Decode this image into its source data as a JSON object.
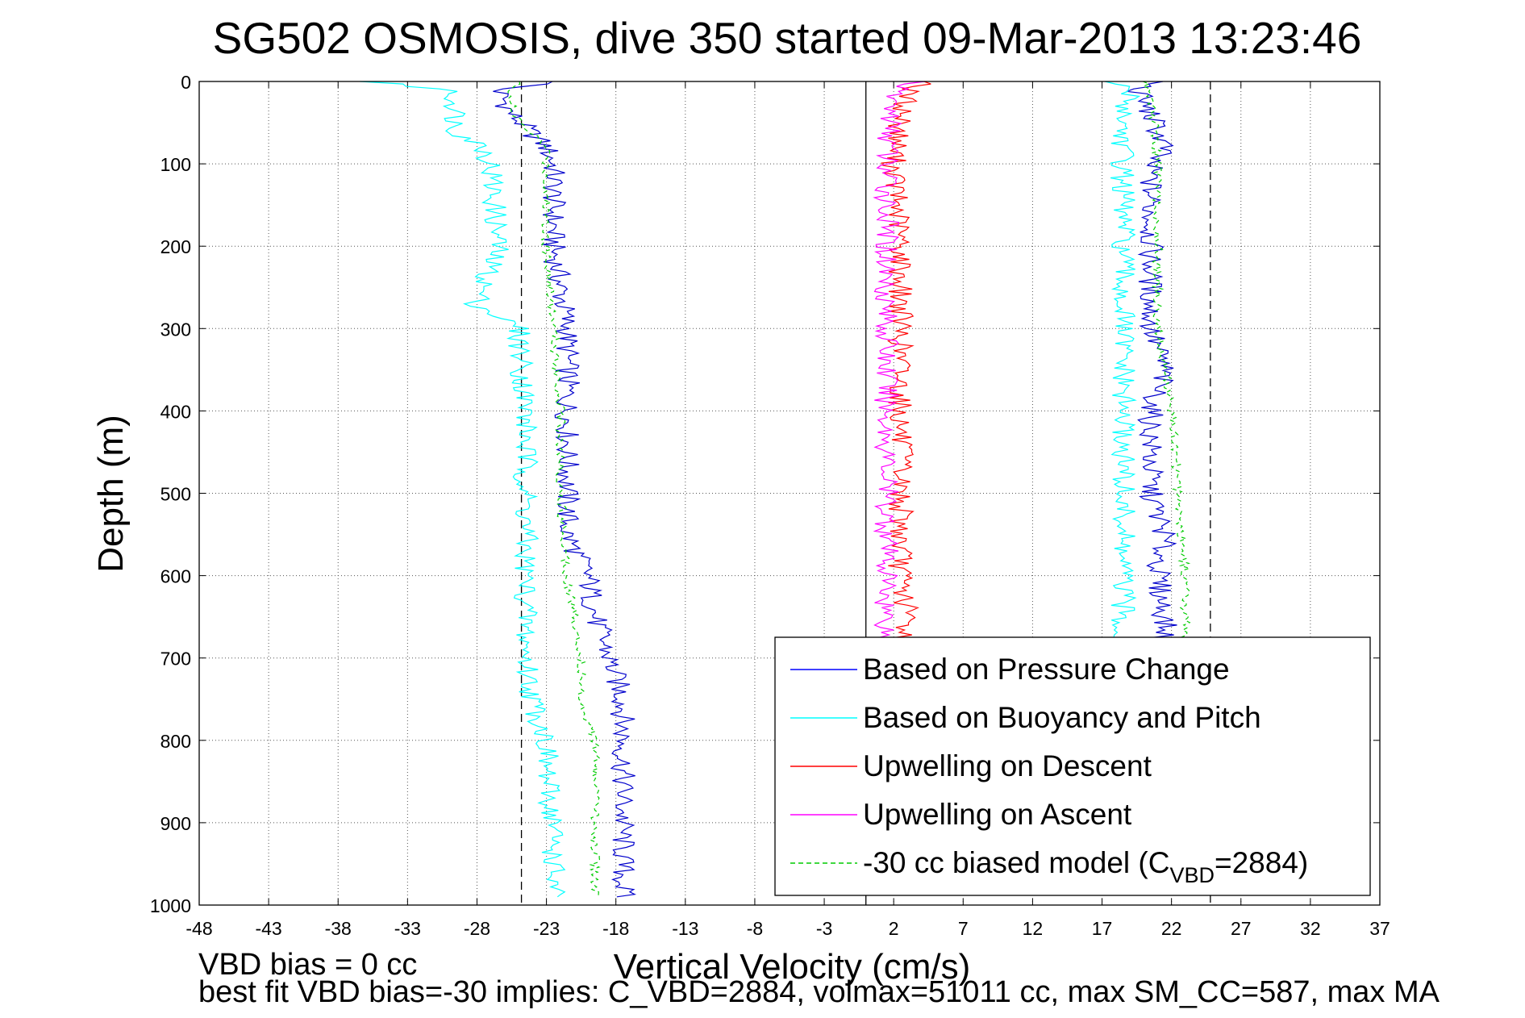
{
  "chart_data": {
    "type": "line",
    "title": "SG502 OSMOSIS, dive 350 started 09-Mar-2013 13:23:46",
    "xlabel": "Vertical Velocity (cm/s)",
    "ylabel": "Depth (m)",
    "xlim": [
      -48,
      37
    ],
    "ylim": [
      0,
      1000
    ],
    "y_reversed": true,
    "grid": true,
    "xticks": [
      -48,
      -43,
      -38,
      -33,
      -28,
      -23,
      -18,
      -13,
      -8,
      -3,
      2,
      7,
      12,
      17,
      22,
      27,
      32,
      37
    ],
    "yticks": [
      0,
      100,
      200,
      300,
      400,
      500,
      600,
      700,
      800,
      900,
      1000
    ],
    "reference_lines": [
      {
        "x": 0,
        "style": "solid"
      },
      {
        "x": -24.8,
        "style": "dashed"
      },
      {
        "x": 24.8,
        "style": "dashed"
      }
    ],
    "legend": {
      "location": "bottom-right",
      "entries": [
        {
          "label": "Based on Pressure Change",
          "color": "#0000ff",
          "style": "solid"
        },
        {
          "label": "Based on Buoyancy and Pitch",
          "color": "#00ffff",
          "style": "solid"
        },
        {
          "label": "Upwelling on Descent",
          "color": "#ff0000",
          "style": "solid"
        },
        {
          "label": "Upwelling on Ascent",
          "color": "#ff00ff",
          "style": "solid"
        },
        {
          "label": "-30 cc biased model (C",
          "sub": "VBD",
          "suffix": "=2884)",
          "color": "#00cc00",
          "style": "dashed"
        }
      ]
    },
    "series": [
      {
        "name": "Based on Pressure Change",
        "color": "#0000cc",
        "dash": false,
        "segments": [
          {
            "depth": [
              0,
              10,
              40,
              80,
              100,
              200,
              300,
              400,
              500,
              550,
              600,
              650,
              700,
              750,
              800,
              850,
              900,
              950,
              990
            ],
            "x": [
              -22,
              -26.5,
              -25.5,
              -23,
              -22.5,
              -22.5,
              -21.5,
              -21.5,
              -21.5,
              -21.5,
              -20,
              -19.5,
              -18.5,
              -17.5,
              -17.5,
              -17.5,
              -17.5,
              -17.5,
              -17.5
            ]
          },
          {
            "depth": [
              0,
              10,
              40,
              80,
              100,
              200,
              300,
              350,
              400,
              500,
              550,
              600,
              650,
              700
            ],
            "x": [
              21,
              19.5,
              20.5,
              21.5,
              20.5,
              20.5,
              20.5,
              21.5,
              20.5,
              20.5,
              21.5,
              21,
              21.5,
              21.5
            ]
          }
        ]
      },
      {
        "name": "Based on Buoyancy and Pitch",
        "color": "#00ffff",
        "dash": false,
        "segments": [
          {
            "depth": [
              0,
              10,
              30,
              60,
              80,
              100,
              200,
              270,
              300,
              400,
              500,
              600,
              700,
              750,
              800,
              850,
              900,
              950,
              990
            ],
            "x": [
              -36,
              -30,
              -29.5,
              -29.5,
              -27.5,
              -27,
              -26.5,
              -28,
              -25,
              -24.5,
              -24.5,
              -24.5,
              -24.5,
              -24,
              -23,
              -23,
              -22.5,
              -22.5,
              -22.5
            ]
          },
          {
            "depth": [
              0,
              10,
              50,
              100,
              200,
              300,
              400,
              500,
              600,
              650,
              700
            ],
            "x": [
              17.5,
              19,
              18.5,
              18.5,
              18.5,
              18.5,
              18.5,
              18.5,
              18.5,
              18.5,
              18.5
            ]
          }
        ]
      },
      {
        "name": "Upwelling on Descent",
        "color": "#ff0000",
        "dash": false,
        "segments": [
          {
            "depth": [
              0,
              10,
              50,
              100,
              200,
              300,
              400,
              500,
              550,
              600,
              650,
              700
            ],
            "x": [
              5,
              3,
              2.5,
              2,
              2.5,
              2.5,
              2.5,
              2.5,
              2.5,
              2.5,
              3,
              2.5
            ]
          }
        ]
      },
      {
        "name": "Upwelling on Ascent",
        "color": "#ff00ff",
        "dash": false,
        "segments": [
          {
            "depth": [
              0,
              10,
              100,
              200,
              300,
              400,
              500,
              600,
              650,
              700
            ],
            "x": [
              4,
              2,
              1.5,
              1.5,
              1.5,
              1.5,
              1.5,
              1.5,
              1.5,
              1.5
            ]
          }
        ]
      },
      {
        "name": "-30 cc biased model (C_VBD=2884)",
        "color": "#00cc00",
        "dash": true,
        "segments": [
          {
            "depth": [
              0,
              10,
              40,
              80,
              100,
              200,
              300,
              400,
              500,
              600,
              700,
              750,
              800,
              850,
              900,
              950,
              990
            ],
            "x": [
              -25,
              -25.5,
              -25.5,
              -23,
              -23,
              -23,
              -22.5,
              -22,
              -22,
              -21.5,
              -20.5,
              -20.5,
              -19.5,
              -19.5,
              -19.5,
              -19.5,
              -19.5
            ]
          },
          {
            "depth": [
              0,
              10,
              100,
              200,
              300,
              400,
              500,
              600,
              650,
              700
            ],
            "x": [
              20,
              20.5,
              21,
              21,
              21,
              22,
              22.5,
              23,
              23,
              23
            ]
          }
        ]
      }
    ]
  },
  "footer": {
    "line1": "VBD bias = 0 cc",
    "line2": "best fit VBD bias=-30 implies: C_VBD=2884, volmax=51011 cc, max SM_CC=587, max MA"
  }
}
